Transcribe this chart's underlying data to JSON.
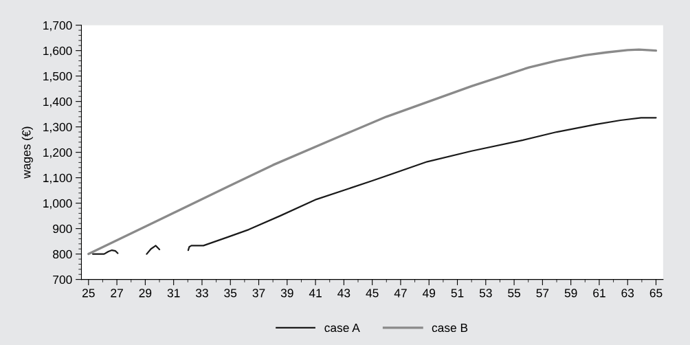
{
  "chart_data": {
    "type": "line",
    "ylabel": "wages (€)",
    "xlim": [
      24.5,
      65.5
    ],
    "ylim": [
      700,
      1700
    ],
    "xticks": [
      25,
      {
        "value": 26,
        "label": null
      },
      27,
      {
        "value": 28,
        "label": null
      },
      29,
      {
        "value": 30,
        "label": null
      },
      31,
      {
        "value": 32,
        "label": null
      },
      33,
      {
        "value": 34,
        "label": null
      },
      35,
      {
        "value": 36,
        "label": null
      },
      37,
      {
        "value": 38,
        "label": null
      },
      39,
      {
        "value": 40,
        "label": null
      },
      41,
      {
        "value": 42,
        "label": null
      },
      43,
      {
        "value": 44,
        "label": null
      },
      45,
      {
        "value": 46,
        "label": null
      },
      47,
      {
        "value": 48,
        "label": null
      },
      49,
      {
        "value": 50,
        "label": null
      },
      51,
      {
        "value": 52,
        "label": null
      },
      53,
      {
        "value": 54,
        "label": null
      },
      55,
      {
        "value": 56,
        "label": null
      },
      57,
      {
        "value": 58,
        "label": null
      },
      59,
      {
        "value": 60,
        "label": null
      },
      61,
      {
        "value": 62,
        "label": null
      },
      63,
      {
        "value": 64,
        "label": null
      },
      65
    ],
    "yticks": [
      {
        "value": 700,
        "label": "700"
      },
      {
        "value": 720,
        "label": null
      },
      {
        "value": 740,
        "label": null
      },
      {
        "value": 760,
        "label": null
      },
      {
        "value": 780,
        "label": null
      },
      {
        "value": 800,
        "label": "800"
      },
      {
        "value": 820,
        "label": null
      },
      {
        "value": 840,
        "label": null
      },
      {
        "value": 860,
        "label": null
      },
      {
        "value": 880,
        "label": null
      },
      {
        "value": 900,
        "label": "900"
      },
      {
        "value": 920,
        "label": null
      },
      {
        "value": 940,
        "label": null
      },
      {
        "value": 960,
        "label": null
      },
      {
        "value": 980,
        "label": null
      },
      {
        "value": 1000,
        "label": "1,000"
      },
      {
        "value": 1020,
        "label": null
      },
      {
        "value": 1040,
        "label": null
      },
      {
        "value": 1060,
        "label": null
      },
      {
        "value": 1080,
        "label": null
      },
      {
        "value": 1100,
        "label": "1,100"
      },
      {
        "value": 1120,
        "label": null
      },
      {
        "value": 1140,
        "label": null
      },
      {
        "value": 1160,
        "label": null
      },
      {
        "value": 1180,
        "label": null
      },
      {
        "value": 1200,
        "label": "1,200"
      },
      {
        "value": 1220,
        "label": null
      },
      {
        "value": 1240,
        "label": null
      },
      {
        "value": 1260,
        "label": null
      },
      {
        "value": 1280,
        "label": null
      },
      {
        "value": 1300,
        "label": "1,300"
      },
      {
        "value": 1320,
        "label": null
      },
      {
        "value": 1340,
        "label": null
      },
      {
        "value": 1360,
        "label": null
      },
      {
        "value": 1380,
        "label": null
      },
      {
        "value": 1400,
        "label": "1,400"
      },
      {
        "value": 1420,
        "label": null
      },
      {
        "value": 1440,
        "label": null
      },
      {
        "value": 1460,
        "label": null
      },
      {
        "value": 1480,
        "label": null
      },
      {
        "value": 1500,
        "label": "1,500"
      },
      {
        "value": 1520,
        "label": null
      },
      {
        "value": 1540,
        "label": null
      },
      {
        "value": 1560,
        "label": null
      },
      {
        "value": 1580,
        "label": null
      },
      {
        "value": 1600,
        "label": "1,600"
      },
      {
        "value": 1620,
        "label": null
      },
      {
        "value": 1640,
        "label": null
      },
      {
        "value": 1660,
        "label": null
      },
      {
        "value": 1680,
        "label": null
      },
      {
        "value": 1700,
        "label": "1,700"
      }
    ],
    "grid": false,
    "legend": "bottom",
    "line_style": "solid",
    "marker": "none",
    "series": [
      {
        "name": "case A",
        "color": "#1a1a1a",
        "x": [
          25.3,
          26.1,
          26.4,
          26.65,
          26.9,
          27.06,
          28,
          29.1,
          29.4,
          29.74,
          30.0,
          31,
          32.03,
          32.1,
          32.25,
          33.1,
          34.83,
          36.29,
          38.5,
          41.06,
          45,
          48.87,
          52,
          55.63,
          58,
          60.8,
          62.5,
          63.95,
          65.0
        ],
        "values": [
          800,
          800,
          810,
          815,
          812,
          803,
          null,
          800,
          820,
          833,
          818,
          null,
          815,
          828,
          833,
          833,
          867,
          896,
          950,
          1015,
          1088,
          1163,
          1205,
          1248,
          1280,
          1310,
          1326,
          1336,
          1336
        ]
      },
      {
        "name": "case B",
        "color": "#8a8a8a",
        "x": [
          25,
          30,
          34.83,
          38,
          42.73,
          46,
          49,
          52,
          56.05,
          58,
          60,
          61.5,
          63,
          63.8,
          65
        ],
        "values": [
          800,
          935,
          1065,
          1150,
          1263,
          1340,
          1400,
          1460,
          1534,
          1560,
          1582,
          1593,
          1602,
          1604,
          1600
        ]
      }
    ]
  }
}
